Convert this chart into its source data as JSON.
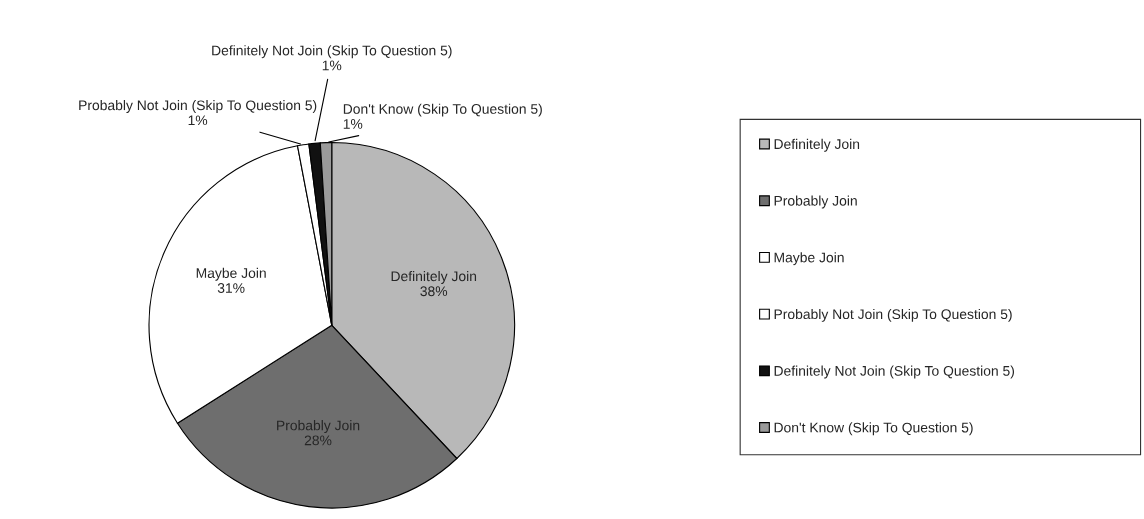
{
  "chart_data": {
    "type": "pie",
    "categories": [
      "Definitely Join",
      "Probably Join",
      "Maybe Join",
      "Probably Not Join (Skip To Question 5)",
      "Definitely Not Join (Skip To Question 5)",
      "Don't Know (Skip To Question 5)"
    ],
    "values": [
      38,
      28,
      31,
      1,
      1,
      1
    ],
    "value_labels": [
      "38%",
      "28%",
      "31%",
      "1%",
      "1%",
      "1%"
    ],
    "colors": [
      "#b8b8b8",
      "#6e6e6e",
      "#ffffff",
      "#ffffff",
      "#111111",
      "#9a9a9a"
    ],
    "legend": "right"
  }
}
